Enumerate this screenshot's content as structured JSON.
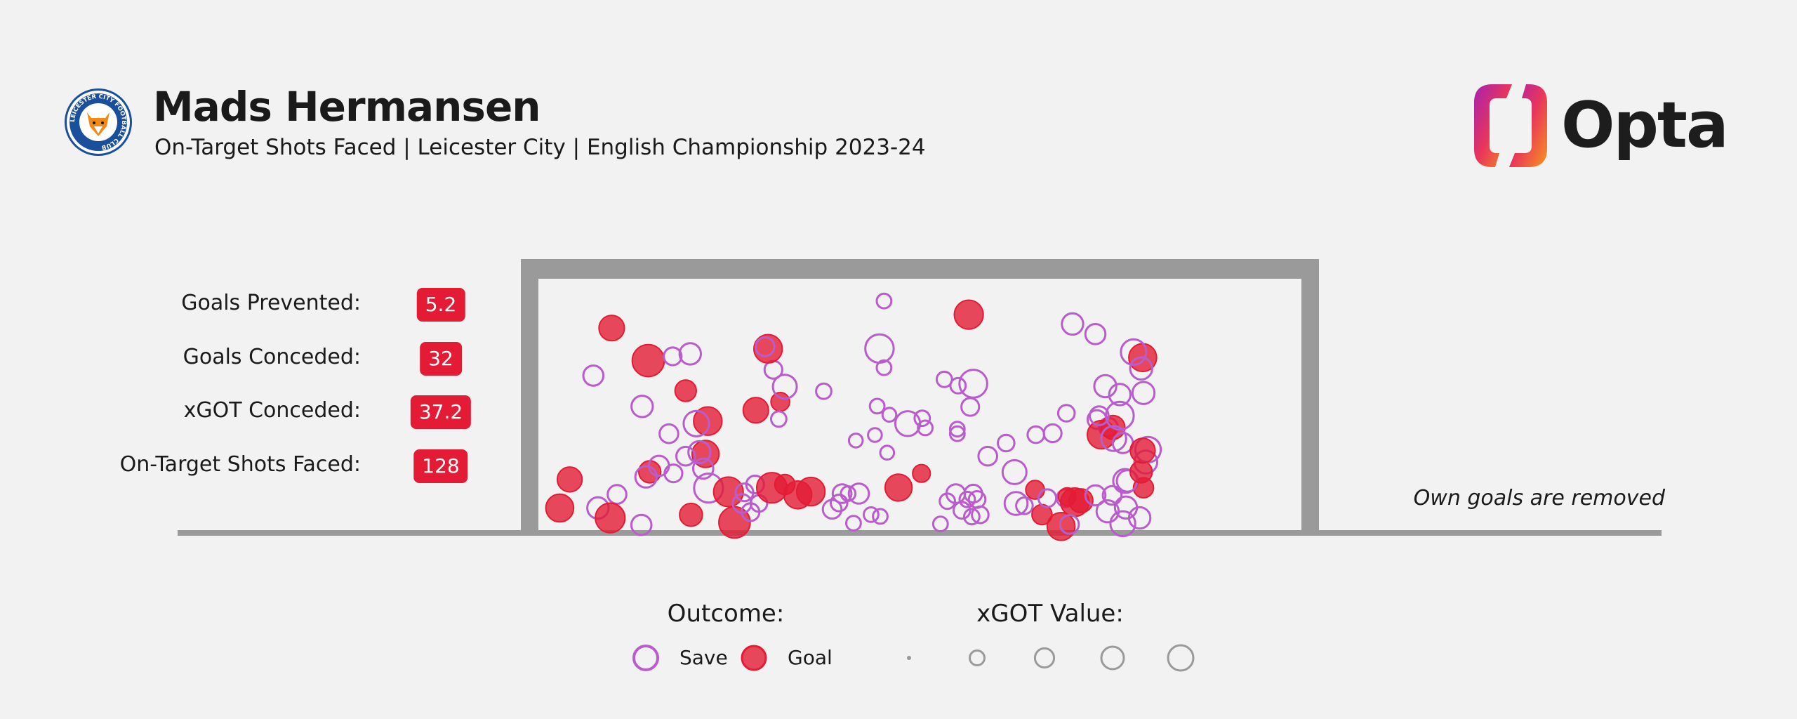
{
  "header": {
    "title": "Mads Hermansen",
    "subtitle": "On-Target Shots Faced | Leicester City | English Championship 2023-24",
    "brand": "Opta",
    "club_crest_icon": "leicester-city-crest-icon",
    "crest_text": "LEICESTER CITY FOOTBALL CLUB"
  },
  "stats": [
    {
      "label": "Goals Prevented:",
      "value": "5.2"
    },
    {
      "label": "Goals Conceded:",
      "value": "32"
    },
    {
      "label": "xGOT Conceded:",
      "value": "37.2"
    },
    {
      "label": "On-Target Shots Faced:",
      "value": "128"
    }
  ],
  "note": "Own goals are removed",
  "legend": {
    "outcome_title": "Outcome:",
    "save_label": "Save",
    "goal_label": "Goal",
    "xgot_title": "xGOT Value:",
    "xgot_sizes": [
      0.01,
      0.25,
      0.5,
      0.75,
      1.0
    ]
  },
  "colors": {
    "save": "#b95ccc",
    "goal": "#e31b35",
    "goal_frame": "#9a9a9a",
    "badge": "#e31b35",
    "brand_gradient": [
      "#a621b0",
      "#e8355b",
      "#f7951d"
    ]
  },
  "chart_data": {
    "type": "scatter",
    "description_axes": {
      "x": "goal width",
      "y": "goal height"
    },
    "xlim": [
      0,
      1
    ],
    "ylim": [
      0,
      1
    ],
    "shots": [
      {
        "x": 0.096,
        "y": 0.805,
        "xgot": 0.3,
        "outcome": "Goal"
      },
      {
        "x": 0.144,
        "y": 0.676,
        "xgot": 0.55,
        "outcome": "Goal"
      },
      {
        "x": 0.072,
        "y": 0.617,
        "xgot": 0.15,
        "outcome": "Save"
      },
      {
        "x": 0.199,
        "y": 0.703,
        "xgot": 0.18,
        "outcome": "Save"
      },
      {
        "x": 0.176,
        "y": 0.693,
        "xgot": 0.1,
        "outcome": "Save"
      },
      {
        "x": 0.193,
        "y": 0.557,
        "xgot": 0.18,
        "outcome": "Goal"
      },
      {
        "x": 0.136,
        "y": 0.495,
        "xgot": 0.18,
        "outcome": "Save"
      },
      {
        "x": 0.222,
        "y": 0.437,
        "xgot": 0.4,
        "outcome": "Goal"
      },
      {
        "x": 0.207,
        "y": 0.427,
        "xgot": 0.3,
        "outcome": "Save"
      },
      {
        "x": 0.171,
        "y": 0.387,
        "xgot": 0.12,
        "outcome": "Save"
      },
      {
        "x": 0.219,
        "y": 0.307,
        "xgot": 0.35,
        "outcome": "Goal"
      },
      {
        "x": 0.211,
        "y": 0.314,
        "xgot": 0.2,
        "outcome": "Save"
      },
      {
        "x": 0.193,
        "y": 0.298,
        "xgot": 0.12,
        "outcome": "Save"
      },
      {
        "x": 0.216,
        "y": 0.249,
        "xgot": 0.15,
        "outcome": "Save"
      },
      {
        "x": 0.146,
        "y": 0.236,
        "xgot": 0.2,
        "outcome": "Goal"
      },
      {
        "x": 0.141,
        "y": 0.216,
        "xgot": 0.18,
        "outcome": "Save"
      },
      {
        "x": 0.158,
        "y": 0.26,
        "xgot": 0.15,
        "outcome": "Save"
      },
      {
        "x": 0.177,
        "y": 0.23,
        "xgot": 0.1,
        "outcome": "Save"
      },
      {
        "x": 0.041,
        "y": 0.206,
        "xgot": 0.28,
        "outcome": "Goal"
      },
      {
        "x": 0.103,
        "y": 0.147,
        "xgot": 0.12,
        "outcome": "Save"
      },
      {
        "x": 0.028,
        "y": 0.093,
        "xgot": 0.38,
        "outcome": "Goal"
      },
      {
        "x": 0.078,
        "y": 0.093,
        "xgot": 0.18,
        "outcome": "Save"
      },
      {
        "x": 0.094,
        "y": 0.054,
        "xgot": 0.45,
        "outcome": "Goal"
      },
      {
        "x": 0.135,
        "y": 0.026,
        "xgot": 0.15,
        "outcome": "Save"
      },
      {
        "x": 0.2,
        "y": 0.066,
        "xgot": 0.22,
        "outcome": "Goal"
      },
      {
        "x": 0.223,
        "y": 0.172,
        "xgot": 0.42,
        "outcome": "Save"
      },
      {
        "x": 0.249,
        "y": 0.157,
        "xgot": 0.45,
        "outcome": "Goal"
      },
      {
        "x": 0.257,
        "y": 0.036,
        "xgot": 0.52,
        "outcome": "Goal"
      },
      {
        "x": 0.267,
        "y": 0.111,
        "xgot": 0.12,
        "outcome": "Save"
      },
      {
        "x": 0.27,
        "y": 0.155,
        "xgot": 0.1,
        "outcome": "Save"
      },
      {
        "x": 0.284,
        "y": 0.186,
        "xgot": 0.1,
        "outcome": "Save"
      },
      {
        "x": 0.289,
        "y": 0.111,
        "xgot": 0.08,
        "outcome": "Save"
      },
      {
        "x": 0.278,
        "y": 0.077,
        "xgot": 0.1,
        "outcome": "Save"
      },
      {
        "x": 0.306,
        "y": 0.173,
        "xgot": 0.48,
        "outcome": "Goal"
      },
      {
        "x": 0.323,
        "y": 0.186,
        "xgot": 0.15,
        "outcome": "Goal"
      },
      {
        "x": 0.34,
        "y": 0.145,
        "xgot": 0.38,
        "outcome": "Goal"
      },
      {
        "x": 0.357,
        "y": 0.158,
        "xgot": 0.4,
        "outcome": "Goal"
      },
      {
        "x": 0.285,
        "y": 0.48,
        "xgot": 0.3,
        "outcome": "Goal"
      },
      {
        "x": 0.317,
        "y": 0.513,
        "xgot": 0.12,
        "outcome": "Goal"
      },
      {
        "x": 0.315,
        "y": 0.445,
        "xgot": 0.06,
        "outcome": "Save"
      },
      {
        "x": 0.323,
        "y": 0.573,
        "xgot": 0.25,
        "outcome": "Save"
      },
      {
        "x": 0.308,
        "y": 0.64,
        "xgot": 0.1,
        "outcome": "Save"
      },
      {
        "x": 0.301,
        "y": 0.723,
        "xgot": 0.4,
        "outcome": "Goal"
      },
      {
        "x": 0.297,
        "y": 0.731,
        "xgot": 0.12,
        "outcome": "Save"
      },
      {
        "x": 0.374,
        "y": 0.555,
        "xgot": 0.06,
        "outcome": "Save"
      },
      {
        "x": 0.394,
        "y": 0.113,
        "xgot": 0.08,
        "outcome": "Save"
      },
      {
        "x": 0.398,
        "y": 0.15,
        "xgot": 0.12,
        "outcome": "Save"
      },
      {
        "x": 0.385,
        "y": 0.088,
        "xgot": 0.12,
        "outcome": "Save"
      },
      {
        "x": 0.413,
        "y": 0.033,
        "xgot": 0.05,
        "outcome": "Save"
      },
      {
        "x": 0.406,
        "y": 0.15,
        "xgot": 0.05,
        "outcome": "Save"
      },
      {
        "x": 0.42,
        "y": 0.15,
        "xgot": 0.15,
        "outcome": "Save"
      },
      {
        "x": 0.436,
        "y": 0.067,
        "xgot": 0.05,
        "outcome": "Save"
      },
      {
        "x": 0.448,
        "y": 0.06,
        "xgot": 0.05,
        "outcome": "Save"
      },
      {
        "x": 0.416,
        "y": 0.36,
        "xgot": 0.04,
        "outcome": "Save"
      },
      {
        "x": 0.441,
        "y": 0.382,
        "xgot": 0.04,
        "outcome": "Save"
      },
      {
        "x": 0.444,
        "y": 0.496,
        "xgot": 0.05,
        "outcome": "Save"
      },
      {
        "x": 0.457,
        "y": 0.312,
        "xgot": 0.04,
        "outcome": "Save"
      },
      {
        "x": 0.46,
        "y": 0.462,
        "xgot": 0.04,
        "outcome": "Save"
      },
      {
        "x": 0.472,
        "y": 0.174,
        "xgot": 0.35,
        "outcome": "Goal"
      },
      {
        "x": 0.447,
        "y": 0.724,
        "xgot": 0.4,
        "outcome": "Save"
      },
      {
        "x": 0.453,
        "y": 0.648,
        "xgot": 0.05,
        "outcome": "Save"
      },
      {
        "x": 0.453,
        "y": 0.912,
        "xgot": 0.05,
        "outcome": "Save"
      },
      {
        "x": 0.484,
        "y": 0.427,
        "xgot": 0.28,
        "outcome": "Save"
      },
      {
        "x": 0.503,
        "y": 0.448,
        "xgot": 0.06,
        "outcome": "Save"
      },
      {
        "x": 0.507,
        "y": 0.41,
        "xgot": 0.05,
        "outcome": "Save"
      },
      {
        "x": 0.502,
        "y": 0.23,
        "xgot": 0.1,
        "outcome": "Goal"
      },
      {
        "x": 0.564,
        "y": 0.858,
        "xgot": 0.42,
        "outcome": "Goal"
      },
      {
        "x": 0.527,
        "y": 0.03,
        "xgot": 0.05,
        "outcome": "Save"
      },
      {
        "x": 0.536,
        "y": 0.12,
        "xgot": 0.06,
        "outcome": "Save"
      },
      {
        "x": 0.547,
        "y": 0.15,
        "xgot": 0.12,
        "outcome": "Save"
      },
      {
        "x": 0.555,
        "y": 0.084,
        "xgot": 0.08,
        "outcome": "Save"
      },
      {
        "x": 0.562,
        "y": 0.127,
        "xgot": 0.06,
        "outcome": "Save"
      },
      {
        "x": 0.568,
        "y": 0.059,
        "xgot": 0.06,
        "outcome": "Save"
      },
      {
        "x": 0.579,
        "y": 0.066,
        "xgot": 0.08,
        "outcome": "Save"
      },
      {
        "x": 0.575,
        "y": 0.127,
        "xgot": 0.08,
        "outcome": "Save"
      },
      {
        "x": 0.57,
        "y": 0.15,
        "xgot": 0.1,
        "outcome": "Save"
      },
      {
        "x": 0.549,
        "y": 0.405,
        "xgot": 0.05,
        "outcome": "Save"
      },
      {
        "x": 0.549,
        "y": 0.387,
        "xgot": 0.05,
        "outcome": "Save"
      },
      {
        "x": 0.532,
        "y": 0.602,
        "xgot": 0.06,
        "outcome": "Save"
      },
      {
        "x": 0.55,
        "y": 0.577,
        "xgot": 0.06,
        "outcome": "Save"
      },
      {
        "x": 0.57,
        "y": 0.585,
        "xgot": 0.38,
        "outcome": "Save"
      },
      {
        "x": 0.566,
        "y": 0.493,
        "xgot": 0.1,
        "outcome": "Save"
      },
      {
        "x": 0.589,
        "y": 0.298,
        "xgot": 0.12,
        "outcome": "Save"
      },
      {
        "x": 0.613,
        "y": 0.35,
        "xgot": 0.08,
        "outcome": "Save"
      },
      {
        "x": 0.624,
        "y": 0.235,
        "xgot": 0.25,
        "outcome": "Save"
      },
      {
        "x": 0.626,
        "y": 0.111,
        "xgot": 0.22,
        "outcome": "Save"
      },
      {
        "x": 0.637,
        "y": 0.102,
        "xgot": 0.08,
        "outcome": "Save"
      },
      {
        "x": 0.66,
        "y": 0.067,
        "xgot": 0.15,
        "outcome": "Goal"
      },
      {
        "x": 0.651,
        "y": 0.165,
        "xgot": 0.12,
        "outcome": "Goal"
      },
      {
        "x": 0.667,
        "y": 0.132,
        "xgot": 0.1,
        "outcome": "Save"
      },
      {
        "x": 0.691,
        "y": 0.132,
        "xgot": 0.1,
        "outcome": "Save"
      },
      {
        "x": 0.693,
        "y": 0.138,
        "xgot": 0.1,
        "outcome": "Goal"
      },
      {
        "x": 0.703,
        "y": 0.116,
        "xgot": 0.4,
        "outcome": "Goal"
      },
      {
        "x": 0.711,
        "y": 0.122,
        "xgot": 0.25,
        "outcome": "Goal"
      },
      {
        "x": 0.73,
        "y": 0.143,
        "xgot": 0.15,
        "outcome": "Save"
      },
      {
        "x": 0.752,
        "y": 0.143,
        "xgot": 0.12,
        "outcome": "Save"
      },
      {
        "x": 0.685,
        "y": 0.02,
        "xgot": 0.38,
        "outcome": "Goal"
      },
      {
        "x": 0.696,
        "y": 0.028,
        "xgot": 0.12,
        "outcome": "Save"
      },
      {
        "x": 0.746,
        "y": 0.08,
        "xgot": 0.2,
        "outcome": "Save"
      },
      {
        "x": 0.772,
        "y": 0.2,
        "xgot": 0.18,
        "outcome": "Save"
      },
      {
        "x": 0.652,
        "y": 0.383,
        "xgot": 0.08,
        "outcome": "Save"
      },
      {
        "x": 0.674,
        "y": 0.389,
        "xgot": 0.1,
        "outcome": "Save"
      },
      {
        "x": 0.692,
        "y": 0.468,
        "xgot": 0.08,
        "outcome": "Save"
      },
      {
        "x": 0.747,
        "y": 0.413,
        "xgot": 0.12,
        "outcome": "Save"
      },
      {
        "x": 0.732,
        "y": 0.443,
        "xgot": 0.12,
        "outcome": "Save"
      },
      {
        "x": 0.738,
        "y": 0.383,
        "xgot": 0.4,
        "outcome": "Goal"
      },
      {
        "x": 0.753,
        "y": 0.412,
        "xgot": 0.25,
        "outcome": "Goal"
      },
      {
        "x": 0.754,
        "y": 0.368,
        "xgot": 0.28,
        "outcome": "Save"
      },
      {
        "x": 0.762,
        "y": 0.542,
        "xgot": 0.18,
        "outcome": "Save"
      },
      {
        "x": 0.762,
        "y": 0.458,
        "xgot": 0.38,
        "outcome": "Save"
      },
      {
        "x": 0.766,
        "y": 0.35,
        "xgot": 0.15,
        "outcome": "Save"
      },
      {
        "x": 0.793,
        "y": 0.548,
        "xgot": 0.2,
        "outcome": "Save"
      },
      {
        "x": 0.735,
        "y": 0.458,
        "xgot": 0.12,
        "outcome": "Save"
      },
      {
        "x": 0.796,
        "y": 0.275,
        "xgot": 0.22,
        "outcome": "Save"
      },
      {
        "x": 0.793,
        "y": 0.173,
        "xgot": 0.15,
        "outcome": "Goal"
      },
      {
        "x": 0.77,
        "y": 0.095,
        "xgot": 0.2,
        "outcome": "Save"
      },
      {
        "x": 0.766,
        "y": 0.031,
        "xgot": 0.28,
        "outcome": "Save"
      },
      {
        "x": 0.788,
        "y": 0.054,
        "xgot": 0.18,
        "outcome": "Save"
      },
      {
        "x": 0.769,
        "y": 0.2,
        "xgot": 0.25,
        "outcome": "Save"
      },
      {
        "x": 0.79,
        "y": 0.236,
        "xgot": 0.2,
        "outcome": "Goal"
      },
      {
        "x": 0.799,
        "y": 0.324,
        "xgot": 0.3,
        "outcome": "Save"
      },
      {
        "x": 0.792,
        "y": 0.32,
        "xgot": 0.28,
        "outcome": "Goal"
      },
      {
        "x": 0.792,
        "y": 0.688,
        "xgot": 0.38,
        "outcome": "Goal"
      },
      {
        "x": 0.78,
        "y": 0.71,
        "xgot": 0.3,
        "outcome": "Save"
      },
      {
        "x": 0.79,
        "y": 0.645,
        "xgot": 0.2,
        "outcome": "Save"
      },
      {
        "x": 0.73,
        "y": 0.781,
        "xgot": 0.15,
        "outcome": "Save"
      },
      {
        "x": 0.7,
        "y": 0.821,
        "xgot": 0.18,
        "outcome": "Save"
      },
      {
        "x": 0.743,
        "y": 0.575,
        "xgot": 0.2,
        "outcome": "Save"
      }
    ]
  }
}
